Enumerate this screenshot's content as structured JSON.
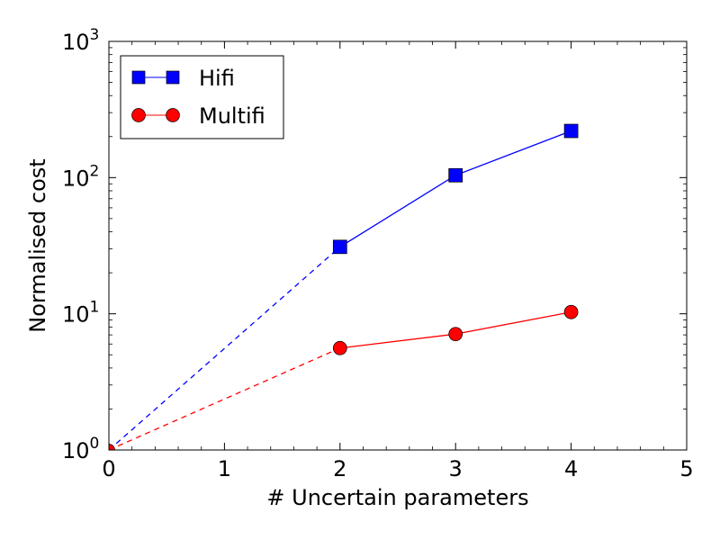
{
  "chart_data": {
    "type": "line",
    "xlabel": "# Uncertain parameters",
    "ylabel": "Normalised cost",
    "xlim": [
      0,
      5
    ],
    "ylim": [
      1,
      1000
    ],
    "y_scale": "log",
    "x_ticks": [
      "0",
      "1",
      "2",
      "3",
      "4",
      "5"
    ],
    "y_ticks": [
      {
        "base": "10",
        "exp": "0"
      },
      {
        "base": "10",
        "exp": "1"
      },
      {
        "base": "10",
        "exp": "2"
      },
      {
        "base": "10",
        "exp": "3"
      }
    ],
    "grid": false,
    "legend_position": "top-left",
    "series": [
      {
        "name": "Hifi",
        "color": "#0000ff",
        "marker": "square",
        "points": [
          {
            "x": 2,
            "y": 31
          },
          {
            "x": 3,
            "y": 104
          },
          {
            "x": 4,
            "y": 220
          }
        ],
        "extrapolation": [
          {
            "x": 0,
            "y": 1
          },
          {
            "x": 2,
            "y": 31
          }
        ]
      },
      {
        "name": "Multifi",
        "color": "#ff0000",
        "marker": "circle",
        "points": [
          {
            "x": 2,
            "y": 5.6
          },
          {
            "x": 3,
            "y": 7.1
          },
          {
            "x": 4,
            "y": 10.3
          }
        ],
        "extrapolation": [
          {
            "x": 0,
            "y": 1
          },
          {
            "x": 2,
            "y": 5.6
          }
        ]
      }
    ],
    "origin_marker": {
      "x": 0,
      "y": 1
    }
  }
}
